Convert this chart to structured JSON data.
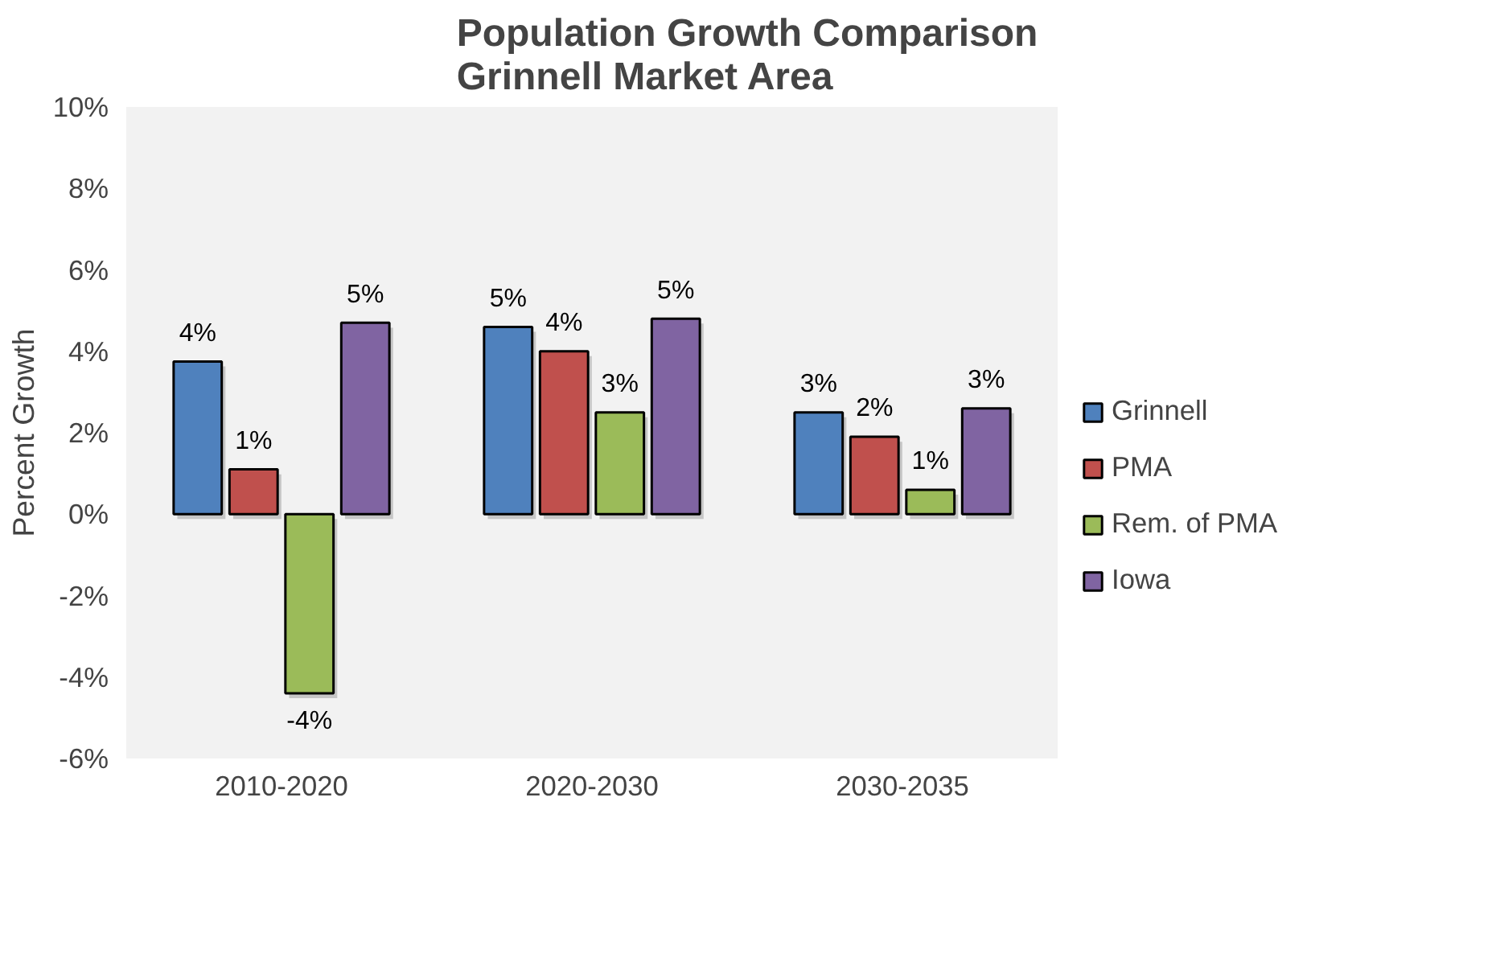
{
  "chart_data": {
    "type": "bar",
    "title": "Population Growth Comparison\nGrinnell Market Area",
    "ylabel": "Percent Growth",
    "categories": [
      "2010-2020",
      "2020-2030",
      "2030-2035"
    ],
    "series": [
      {
        "name": "Grinnell",
        "color": "#4f81bd",
        "values": [
          3.75,
          4.6,
          2.5
        ],
        "value_labels": [
          "4%",
          "5%",
          "3%"
        ]
      },
      {
        "name": "PMA",
        "color": "#c0504d",
        "values": [
          1.1,
          4.0,
          1.9
        ],
        "value_labels": [
          "1%",
          "4%",
          "2%"
        ]
      },
      {
        "name": "Rem. of PMA",
        "color": "#9bbb59",
        "values": [
          -4.4,
          2.5,
          0.6
        ],
        "value_labels": [
          "-4%",
          "3%",
          "1%"
        ]
      },
      {
        "name": "Iowa",
        "color": "#8064a2",
        "values": [
          4.7,
          4.8,
          2.6
        ],
        "value_labels": [
          "5%",
          "5%",
          "3%"
        ]
      }
    ],
    "ylim": [
      -6,
      10
    ],
    "yticks": [
      {
        "value": -6,
        "label": "-6%"
      },
      {
        "value": -4,
        "label": "-4%"
      },
      {
        "value": -2,
        "label": "-2%"
      },
      {
        "value": 0,
        "label": "0%"
      },
      {
        "value": 2,
        "label": "2%"
      },
      {
        "value": 4,
        "label": "4%"
      },
      {
        "value": 6,
        "label": "6%"
      },
      {
        "value": 8,
        "label": "8%"
      },
      {
        "value": 10,
        "label": "10%"
      }
    ],
    "grid": false,
    "legend": "right"
  }
}
